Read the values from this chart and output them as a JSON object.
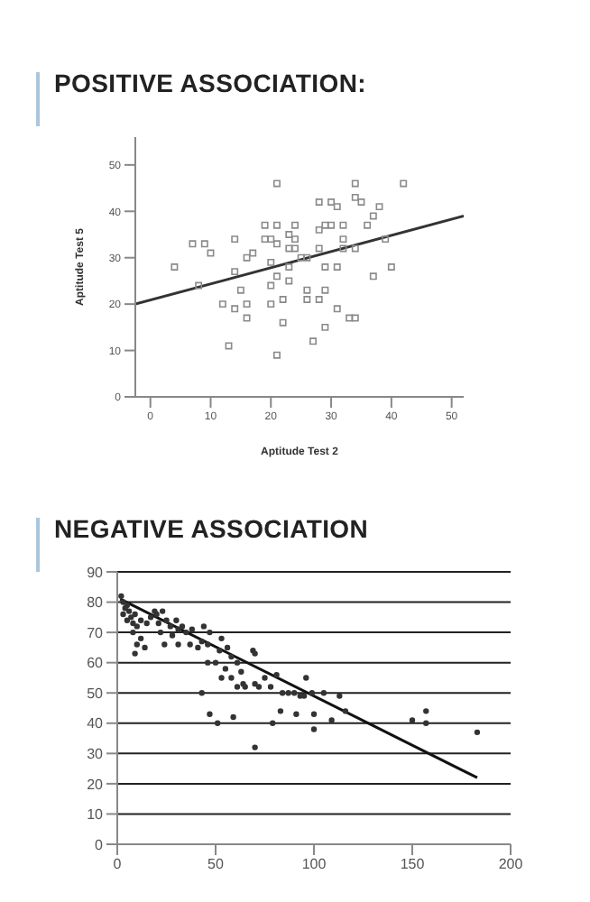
{
  "chart_data": [
    {
      "type": "scatter",
      "title": "POSITIVE ASSOCIATION:",
      "xlabel": "Aptitude Test 2",
      "ylabel": "Aptitude Test 5",
      "xlim": [
        -2.5,
        52
      ],
      "ylim": [
        0,
        56
      ],
      "xticks": [
        0,
        10,
        20,
        30,
        40,
        50
      ],
      "yticks": [
        0,
        10,
        20,
        30,
        40,
        50
      ],
      "series": [
        {
          "marker": "square",
          "color": "#8a8a8a",
          "x": [
            4,
            7,
            9,
            10,
            8,
            14,
            14,
            15,
            14,
            16,
            17,
            16,
            13,
            12,
            16,
            19,
            19,
            20,
            21,
            21,
            21,
            21,
            22,
            20,
            20,
            22,
            21,
            23,
            23,
            24,
            24,
            24,
            25,
            23,
            26,
            26,
            27,
            28,
            28,
            28,
            29,
            29,
            29,
            28,
            29,
            30,
            30,
            31,
            31,
            31,
            32,
            32,
            34,
            34,
            35,
            34,
            33,
            34,
            36,
            37,
            37,
            38,
            39,
            40,
            42,
            20,
            26,
            23,
            32
          ],
          "values": [
            28,
            33,
            33,
            31,
            24,
            34,
            27,
            23,
            19,
            30,
            31,
            20,
            11,
            20,
            17,
            37,
            34,
            34,
            46,
            37,
            33,
            26,
            21,
            20,
            29,
            16,
            9,
            35,
            32,
            37,
            32,
            34,
            30,
            28,
            23,
            21,
            12,
            42,
            36,
            32,
            37,
            28,
            23,
            21,
            15,
            42,
            37,
            28,
            19,
            41,
            32,
            34,
            46,
            43,
            42,
            32,
            17,
            17,
            37,
            26,
            39,
            41,
            34,
            28,
            46,
            24,
            30,
            25,
            37
          ]
        },
        {
          "type": "line",
          "color": "#333333",
          "x": [
            -2.5,
            52
          ],
          "values": [
            20,
            39
          ]
        }
      ]
    },
    {
      "type": "scatter",
      "title": "NEGATIVE ASSOCIATION",
      "xlim": [
        0,
        200
      ],
      "ylim": [
        0,
        90
      ],
      "xticks": [
        0,
        50,
        100,
        150,
        200
      ],
      "yticks": [
        0,
        10,
        20,
        30,
        40,
        50,
        60,
        70,
        80,
        90
      ],
      "grid": "y",
      "series": [
        {
          "marker": "circle",
          "color": "#333333",
          "x": [
            2,
            3,
            4,
            3,
            5,
            6,
            7,
            5,
            8,
            9,
            10,
            8,
            10,
            9,
            12,
            14,
            12,
            15,
            17,
            19,
            20,
            21,
            23,
            25,
            22,
            27,
            28,
            30,
            31,
            33,
            31,
            24,
            35,
            38,
            37,
            44,
            47,
            46,
            43,
            41,
            46,
            50,
            52,
            53,
            56,
            58,
            55,
            53,
            58,
            61,
            63,
            64,
            61,
            65,
            69,
            70,
            70,
            72,
            75,
            78,
            81,
            84,
            87,
            90,
            93,
            96,
            95,
            99,
            105,
            113,
            116,
            43,
            47,
            51,
            59,
            70,
            79,
            83,
            91,
            100,
            100,
            109,
            150,
            157,
            157,
            183
          ],
          "values": [
            82,
            80,
            78,
            76,
            79,
            77,
            75,
            74,
            73,
            76,
            72,
            70,
            66,
            63,
            68,
            65,
            74,
            73,
            75,
            77,
            76,
            73,
            77,
            74,
            70,
            72,
            69,
            74,
            71,
            72,
            66,
            66,
            70,
            71,
            66,
            72,
            70,
            66,
            67,
            65,
            60,
            60,
            64,
            68,
            65,
            62,
            58,
            55,
            55,
            60,
            57,
            53,
            52,
            52,
            64,
            63,
            53,
            52,
            55,
            52,
            56,
            50,
            50,
            50,
            49,
            55,
            49,
            50,
            50,
            49,
            44,
            50,
            43,
            40,
            42,
            32,
            40,
            44,
            43,
            43,
            38,
            41,
            41,
            44,
            40,
            37
          ]
        },
        {
          "type": "line",
          "color": "#111111",
          "x": [
            1.5,
            183
          ],
          "values": [
            81,
            22
          ]
        }
      ]
    }
  ]
}
